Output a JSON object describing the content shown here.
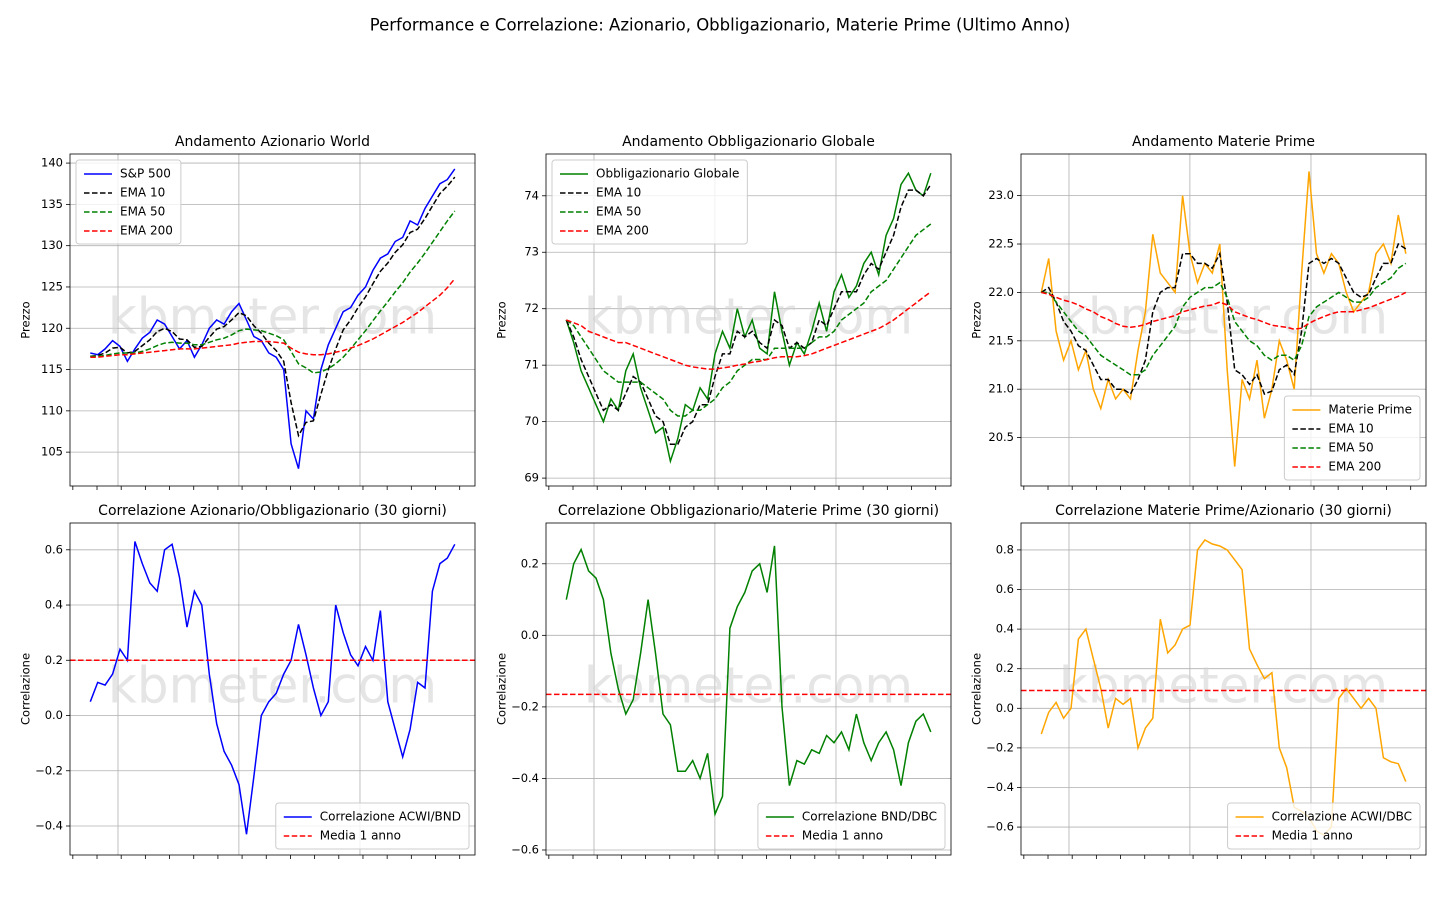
{
  "title": "Performance e Correlazione: Azionario, Obbligazionario, Materie Prime (Ultimo Anno)",
  "watermark": "kbmeter.com",
  "chart_data": [
    {
      "type": "line",
      "title": "Andamento Azionario World",
      "ylabel": "Prezzo",
      "legend": "upper left",
      "grid": true,
      "ylim": [
        100.9,
        141.1
      ],
      "yticks": [
        105,
        110,
        115,
        120,
        125,
        130,
        135,
        140
      ],
      "series": [
        {
          "name": "S&P 500",
          "color": "#0000ff",
          "linestyle": "solid",
          "values": [
            117.0,
            116.8,
            117.5,
            118.5,
            117.8,
            116.0,
            117.5,
            118.8,
            119.5,
            121.0,
            120.5,
            119.0,
            117.5,
            118.5,
            116.5,
            118.0,
            120.0,
            121.0,
            120.5,
            122.0,
            123.0,
            121.0,
            119.0,
            118.5,
            117.0,
            116.5,
            115.0,
            106.0,
            103.0,
            110.0,
            109.0,
            115.0,
            118.0,
            120.0,
            122.0,
            122.5,
            124.0,
            125.0,
            127.0,
            128.5,
            129.0,
            130.5,
            131.0,
            133.0,
            132.5,
            134.5,
            136.0,
            137.5,
            138.0,
            139.3
          ]
        },
        {
          "name": "EMA 10",
          "color": "#000000",
          "linestyle": "dashed",
          "values": [
            116.6,
            116.7,
            117.0,
            117.6,
            117.7,
            117.0,
            117.2,
            117.9,
            118.6,
            119.6,
            120.0,
            119.6,
            118.7,
            118.6,
            117.7,
            117.8,
            118.9,
            119.9,
            120.2,
            121.0,
            121.9,
            121.5,
            120.3,
            119.4,
            118.2,
            117.3,
            116.0,
            111.0,
            107.0,
            108.6,
            108.8,
            112.0,
            115.0,
            117.5,
            119.8,
            121.0,
            122.5,
            123.8,
            125.4,
            126.9,
            127.9,
            129.2,
            130.1,
            131.6,
            132.0,
            133.3,
            134.8,
            136.3,
            137.2,
            138.3
          ]
        },
        {
          "name": "EMA 50",
          "color": "#008000",
          "linestyle": "dashed",
          "values": [
            116.6,
            116.6,
            116.7,
            116.9,
            117.0,
            117.0,
            117.0,
            117.2,
            117.5,
            117.9,
            118.2,
            118.3,
            118.2,
            118.2,
            118.0,
            118.0,
            118.3,
            118.6,
            118.8,
            119.2,
            119.7,
            119.9,
            119.8,
            119.7,
            119.4,
            119.1,
            118.6,
            117.2,
            115.7,
            115.2,
            114.6,
            114.7,
            115.1,
            115.7,
            116.5,
            117.5,
            118.6,
            119.7,
            120.9,
            122.1,
            123.2,
            124.4,
            125.5,
            126.8,
            127.9,
            129.1,
            130.4,
            131.7,
            133.0,
            134.2
          ]
        },
        {
          "name": "EMA 200",
          "color": "#ff0000",
          "linestyle": "dashed",
          "values": [
            116.5,
            116.5,
            116.6,
            116.7,
            116.8,
            116.8,
            116.9,
            117.0,
            117.1,
            117.2,
            117.3,
            117.4,
            117.5,
            117.5,
            117.5,
            117.6,
            117.7,
            117.8,
            117.9,
            118.0,
            118.2,
            118.3,
            118.4,
            118.4,
            118.4,
            118.3,
            118.2,
            117.6,
            117.1,
            116.9,
            116.8,
            116.8,
            116.9,
            117.1,
            117.3,
            117.6,
            117.9,
            118.3,
            118.7,
            119.2,
            119.7,
            120.2,
            120.7,
            121.3,
            121.9,
            122.6,
            123.3,
            124.0,
            124.9,
            126.0
          ]
        }
      ]
    },
    {
      "type": "line",
      "title": "Andamento Obbligazionario Globale",
      "ylabel": "Prezzo",
      "legend": "upper left",
      "grid": true,
      "ylim": [
        68.86,
        74.74
      ],
      "yticks": [
        69,
        70,
        71,
        72,
        73,
        74
      ],
      "series": [
        {
          "name": "Obbligazionario Globale",
          "color": "#008000",
          "linestyle": "solid",
          "values": [
            71.8,
            71.4,
            70.9,
            70.6,
            70.3,
            70.0,
            70.4,
            70.2,
            70.9,
            71.2,
            70.6,
            70.2,
            69.8,
            69.9,
            69.3,
            69.7,
            70.3,
            70.2,
            70.6,
            70.4,
            71.2,
            71.6,
            71.3,
            72.0,
            71.5,
            71.8,
            71.3,
            71.2,
            72.3,
            71.6,
            71.0,
            71.4,
            71.2,
            71.6,
            72.1,
            71.6,
            72.3,
            72.6,
            72.2,
            72.4,
            72.8,
            73.0,
            72.6,
            73.3,
            73.6,
            74.2,
            74.4,
            74.1,
            74.0,
            74.4
          ]
        },
        {
          "name": "EMA 10",
          "color": "#000000",
          "linestyle": "dashed",
          "values": [
            71.8,
            71.5,
            71.1,
            70.8,
            70.5,
            70.2,
            70.3,
            70.2,
            70.5,
            70.8,
            70.7,
            70.4,
            70.1,
            70.0,
            69.6,
            69.6,
            69.9,
            70.0,
            70.3,
            70.3,
            70.8,
            71.2,
            71.2,
            71.6,
            71.5,
            71.6,
            71.4,
            71.3,
            71.8,
            71.7,
            71.3,
            71.4,
            71.3,
            71.4,
            71.8,
            71.7,
            72.0,
            72.3,
            72.3,
            72.3,
            72.6,
            72.8,
            72.7,
            73.0,
            73.3,
            73.8,
            74.1,
            74.1,
            74.0,
            74.2
          ]
        },
        {
          "name": "EMA 50",
          "color": "#008000",
          "linestyle": "dashed",
          "values": [
            71.8,
            71.7,
            71.5,
            71.3,
            71.1,
            70.9,
            70.8,
            70.7,
            70.7,
            70.7,
            70.7,
            70.6,
            70.5,
            70.4,
            70.2,
            70.1,
            70.1,
            70.2,
            70.2,
            70.3,
            70.4,
            70.6,
            70.7,
            70.9,
            71.0,
            71.1,
            71.1,
            71.1,
            71.3,
            71.3,
            71.3,
            71.3,
            71.3,
            71.4,
            71.5,
            71.5,
            71.6,
            71.8,
            71.9,
            72.0,
            72.1,
            72.3,
            72.4,
            72.5,
            72.7,
            72.9,
            73.1,
            73.3,
            73.4,
            73.5
          ]
        },
        {
          "name": "EMA 200",
          "color": "#ff0000",
          "linestyle": "dashed",
          "values": [
            71.8,
            71.75,
            71.7,
            71.6,
            71.55,
            71.5,
            71.45,
            71.4,
            71.4,
            71.35,
            71.3,
            71.25,
            71.2,
            71.15,
            71.1,
            71.05,
            71.0,
            70.97,
            70.95,
            70.93,
            70.93,
            70.95,
            70.97,
            71.0,
            71.02,
            71.05,
            71.07,
            71.1,
            71.13,
            71.15,
            71.15,
            71.15,
            71.17,
            71.2,
            71.25,
            71.3,
            71.35,
            71.4,
            71.45,
            71.5,
            71.55,
            71.6,
            71.65,
            71.72,
            71.8,
            71.9,
            72.0,
            72.1,
            72.2,
            72.3
          ]
        }
      ]
    },
    {
      "type": "line",
      "title": "Andamento Materie Prime",
      "ylabel": "Prezzo",
      "legend": "lower right",
      "grid": true,
      "ylim": [
        20.0,
        23.43
      ],
      "yticks": [
        20.5,
        {
          "value": 21,
          "label": "21.0"
        },
        21.5,
        {
          "value": 22,
          "label": "22.0"
        },
        22.5,
        {
          "value": 23,
          "label": "23.0"
        }
      ],
      "series": [
        {
          "name": "Materie Prime",
          "color": "#ffa500",
          "linestyle": "solid",
          "values": [
            22.0,
            22.35,
            21.6,
            21.3,
            21.5,
            21.2,
            21.4,
            21.0,
            20.8,
            21.1,
            20.9,
            21.0,
            20.9,
            21.4,
            21.8,
            22.6,
            22.2,
            22.1,
            22.0,
            23.0,
            22.4,
            22.1,
            22.3,
            22.2,
            22.5,
            21.2,
            20.2,
            21.1,
            20.9,
            21.3,
            20.7,
            21.0,
            21.5,
            21.3,
            21.0,
            22.2,
            23.25,
            22.4,
            22.2,
            22.4,
            22.3,
            22.0,
            21.8,
            21.9,
            22.0,
            22.4,
            22.5,
            22.3,
            22.8,
            22.4
          ]
        },
        {
          "name": "EMA 10",
          "color": "#000000",
          "linestyle": "dashed",
          "values": [
            22.0,
            22.05,
            21.9,
            21.7,
            21.6,
            21.45,
            21.4,
            21.25,
            21.1,
            21.1,
            21.0,
            21.0,
            20.95,
            21.1,
            21.3,
            21.8,
            22.0,
            22.05,
            22.05,
            22.4,
            22.4,
            22.3,
            22.3,
            22.25,
            22.4,
            21.9,
            21.2,
            21.15,
            21.05,
            21.15,
            20.95,
            20.98,
            21.2,
            21.25,
            21.15,
            21.6,
            22.3,
            22.35,
            22.3,
            22.35,
            22.3,
            22.15,
            22.0,
            21.95,
            21.98,
            22.15,
            22.3,
            22.3,
            22.5,
            22.45
          ]
        },
        {
          "name": "EMA 50",
          "color": "#008000",
          "linestyle": "dashed",
          "values": [
            22.0,
            22.0,
            21.9,
            21.8,
            21.7,
            21.6,
            21.55,
            21.45,
            21.35,
            21.3,
            21.25,
            21.2,
            21.15,
            21.15,
            21.2,
            21.35,
            21.45,
            21.55,
            21.65,
            21.85,
            21.95,
            22.0,
            22.05,
            22.05,
            22.1,
            21.95,
            21.7,
            21.6,
            21.5,
            21.45,
            21.35,
            21.3,
            21.35,
            21.35,
            21.3,
            21.45,
            21.75,
            21.85,
            21.9,
            21.95,
            22.0,
            21.95,
            21.9,
            21.9,
            21.95,
            22.05,
            22.1,
            22.15,
            22.25,
            22.3
          ]
        },
        {
          "name": "EMA 200",
          "color": "#ff0000",
          "linestyle": "dashed",
          "values": [
            22.0,
            21.98,
            21.95,
            21.92,
            21.9,
            21.87,
            21.83,
            21.8,
            21.75,
            21.72,
            21.68,
            21.65,
            21.64,
            21.65,
            21.67,
            21.7,
            21.72,
            21.74,
            21.76,
            21.8,
            21.82,
            21.84,
            21.86,
            21.87,
            21.9,
            21.87,
            21.8,
            21.77,
            21.74,
            21.72,
            21.69,
            21.66,
            21.65,
            21.64,
            21.62,
            21.63,
            21.68,
            21.72,
            21.75,
            21.78,
            21.8,
            21.8,
            21.8,
            21.82,
            21.84,
            21.87,
            21.9,
            21.93,
            21.96,
            22.0
          ]
        }
      ]
    },
    {
      "type": "line",
      "title": "Correlazione Azionario/Obbligazionario (30 giorni)",
      "ylabel": "Correlazione",
      "legend": "lower right",
      "grid": true,
      "ylim": [
        -0.505,
        0.697
      ],
      "yticks": [
        {
          "value": -0.4,
          "label": "−0.4"
        },
        {
          "value": -0.2,
          "label": "−0.2"
        },
        {
          "value": 0,
          "label": "0.0"
        },
        0.2,
        0.4,
        0.6
      ],
      "series": [
        {
          "name": "Correlazione ACWI/BND",
          "color": "#0000ff",
          "linestyle": "solid",
          "values": [
            0.05,
            0.12,
            0.11,
            0.15,
            0.24,
            0.2,
            0.63,
            0.55,
            0.48,
            0.45,
            0.6,
            0.62,
            0.5,
            0.32,
            0.45,
            0.4,
            0.15,
            -0.03,
            -0.13,
            -0.18,
            -0.25,
            -0.43,
            -0.22,
            0.0,
            0.05,
            0.08,
            0.15,
            0.2,
            0.33,
            0.22,
            0.1,
            0.0,
            0.05,
            0.4,
            0.3,
            0.22,
            0.18,
            0.25,
            0.2,
            0.38,
            0.05,
            -0.05,
            -0.15,
            -0.05,
            0.12,
            0.1,
            0.45,
            0.55,
            0.57,
            0.62
          ]
        }
      ],
      "hline": {
        "name": "Media 1 anno",
        "color": "#ff0000",
        "value": 0.2
      }
    },
    {
      "type": "line",
      "title": "Correlazione Obbligazionario/Materie Prime (30 giorni)",
      "ylabel": "Correlazione",
      "legend": "lower right",
      "grid": true,
      "ylim": [
        -0.614,
        0.314
      ],
      "yticks": [
        {
          "value": -0.6,
          "label": "−0.6"
        },
        {
          "value": -0.4,
          "label": "−0.4"
        },
        {
          "value": -0.2,
          "label": "−0.2"
        },
        {
          "value": 0,
          "label": "0.0"
        },
        0.2
      ],
      "series": [
        {
          "name": "Correlazione BND/DBC",
          "color": "#008000",
          "linestyle": "solid",
          "values": [
            0.1,
            0.2,
            0.24,
            0.18,
            0.16,
            0.1,
            -0.05,
            -0.15,
            -0.22,
            -0.18,
            -0.05,
            0.1,
            -0.05,
            -0.22,
            -0.25,
            -0.38,
            -0.38,
            -0.35,
            -0.4,
            -0.33,
            -0.5,
            -0.45,
            0.02,
            0.08,
            0.12,
            0.18,
            0.2,
            0.12,
            0.25,
            -0.2,
            -0.42,
            -0.35,
            -0.36,
            -0.32,
            -0.33,
            -0.28,
            -0.3,
            -0.27,
            -0.32,
            -0.22,
            -0.3,
            -0.35,
            -0.3,
            -0.27,
            -0.32,
            -0.42,
            -0.3,
            -0.24,
            -0.22,
            -0.27
          ]
        }
      ],
      "hline": {
        "name": "Media 1 anno",
        "color": "#ff0000",
        "value": -0.165
      }
    },
    {
      "type": "line",
      "title": "Correlazione Materie Prime/Azionario (30 giorni)",
      "ylabel": "Correlazione",
      "legend": "lower right",
      "grid": true,
      "ylim": [
        -0.741,
        0.936
      ],
      "yticks": [
        {
          "value": -0.6,
          "label": "−0.6"
        },
        {
          "value": -0.4,
          "label": "−0.4"
        },
        {
          "value": -0.2,
          "label": "−0.2"
        },
        {
          "value": 0,
          "label": "0.0"
        },
        0.2,
        0.4,
        0.6,
        0.8
      ],
      "series": [
        {
          "name": "Correlazione ACWI/DBC",
          "color": "#ffa500",
          "linestyle": "solid",
          "values": [
            -0.13,
            -0.02,
            0.03,
            -0.05,
            0.0,
            0.35,
            0.4,
            0.25,
            0.1,
            -0.1,
            0.05,
            0.02,
            0.05,
            -0.2,
            -0.1,
            -0.05,
            0.45,
            0.28,
            0.32,
            0.4,
            0.42,
            0.8,
            0.85,
            0.83,
            0.82,
            0.8,
            0.75,
            0.7,
            0.3,
            0.22,
            0.15,
            0.18,
            -0.2,
            -0.3,
            -0.5,
            -0.52,
            -0.55,
            -0.62,
            -0.64,
            -0.6,
            0.05,
            0.1,
            0.05,
            0.0,
            0.05,
            0.0,
            -0.25,
            -0.27,
            -0.28,
            -0.37
          ]
        }
      ],
      "hline": {
        "name": "Media 1 anno",
        "color": "#ff0000",
        "value": 0.09
      }
    }
  ]
}
